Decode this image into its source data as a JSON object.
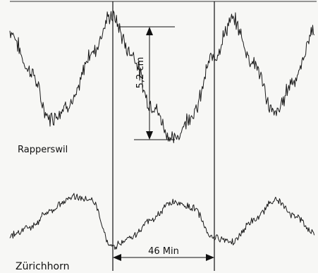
{
  "chart_data": {
    "type": "line",
    "title": "",
    "xlabel": "",
    "ylabel": "",
    "grid": false,
    "x_units": "min",
    "y_units": "cm",
    "annotations": {
      "amplitude_label": "5,2 cm",
      "amplitude_cm": 5.2,
      "period_label": "46 Min",
      "period_min": 46
    },
    "series": [
      {
        "name": "Rapperswil",
        "x": [
          0,
          9,
          18,
          28,
          37,
          46,
          55,
          64,
          74,
          83,
          92,
          101,
          110,
          120,
          129,
          138
        ],
        "y": [
          5.0,
          3.2,
          1.0,
          1.7,
          4.0,
          5.7,
          4.0,
          1.6,
          0.0,
          1.2,
          3.8,
          5.5,
          3.6,
          1.2,
          2.8,
          5.1
        ]
      },
      {
        "name": "Zürichhorn",
        "x": [
          0,
          9,
          18,
          28,
          37,
          46,
          55,
          64,
          74,
          83,
          92,
          101,
          110,
          120,
          129,
          138
        ],
        "y": [
          0.6,
          1.0,
          1.8,
          2.6,
          2.4,
          0.0,
          0.5,
          1.4,
          2.3,
          2.0,
          0.5,
          0.3,
          1.3,
          2.4,
          1.6,
          0.7
        ]
      }
    ]
  }
}
